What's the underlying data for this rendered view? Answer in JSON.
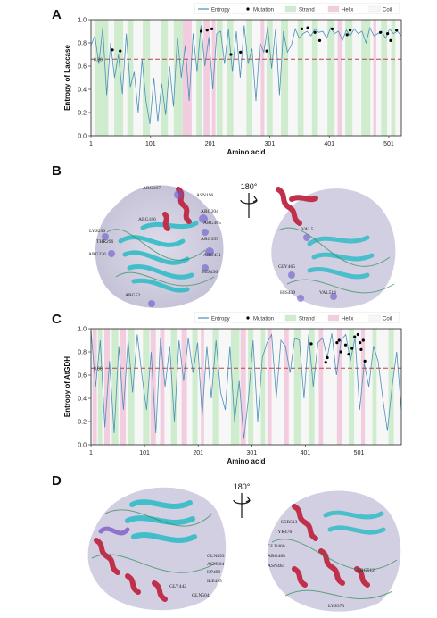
{
  "panels": {
    "a": "A",
    "b": "B",
    "c": "C",
    "d": "D"
  },
  "colors": {
    "entropy": "#4a90b8",
    "mutation": "#000000",
    "strand": "#cfeccf",
    "helix": "#f2cde0",
    "coil": "#f7f7f7",
    "threshold": "#b04848"
  },
  "chart_data": [
    {
      "type": "line",
      "legend": [
        "Entropy",
        "Mutation",
        "Strand",
        "Helix",
        "Coil"
      ],
      "legend_position": "top-right",
      "xlabel": "Amino acid",
      "ylabel": "Entropy of Laccase",
      "xticks": [
        "1",
        "101",
        "201",
        "301",
        "401",
        "501"
      ],
      "yticks": [
        "0.0",
        "0.2",
        "0.4",
        "0.6",
        "0.8",
        "1.0"
      ],
      "threshold_label": "0.66",
      "threshold": 0.66,
      "xlim": [
        1,
        522
      ],
      "ylim": [
        0,
        1.0
      ],
      "strand_regions": [
        [
          8,
          30
        ],
        [
          40,
          55
        ],
        [
          62,
          72
        ],
        [
          88,
          100
        ],
        [
          118,
          130
        ],
        [
          140,
          155
        ],
        [
          178,
          188
        ],
        [
          212,
          222
        ],
        [
          230,
          240
        ],
        [
          262,
          272
        ],
        [
          296,
          306
        ],
        [
          320,
          332
        ],
        [
          348,
          358
        ],
        [
          372,
          382
        ],
        [
          398,
          410
        ],
        [
          428,
          440
        ],
        [
          455,
          470
        ],
        [
          488,
          498
        ],
        [
          505,
          512
        ]
      ],
      "helix_regions": [
        [
          155,
          170
        ],
        [
          190,
          200
        ],
        [
          204,
          210
        ],
        [
          286,
          292
        ],
        [
          415,
          422
        ],
        [
          475,
          480
        ]
      ],
      "mutation_points": [
        [
          37,
          0.74
        ],
        [
          50,
          0.73
        ],
        [
          186,
          0.9
        ],
        [
          196,
          0.91
        ],
        [
          204,
          0.92
        ],
        [
          236,
          0.7
        ],
        [
          252,
          0.72
        ],
        [
          296,
          0.73
        ],
        [
          355,
          0.92
        ],
        [
          365,
          0.93
        ],
        [
          377,
          0.89
        ],
        [
          385,
          0.82
        ],
        [
          406,
          0.92
        ],
        [
          431,
          0.87
        ],
        [
          436,
          0.91
        ],
        [
          487,
          0.89
        ],
        [
          499,
          0.88
        ],
        [
          504,
          0.82
        ],
        [
          514,
          0.91
        ]
      ],
      "entropy_profile": [
        0.78,
        0.86,
        0.62,
        0.93,
        0.35,
        0.8,
        0.5,
        0.7,
        0.36,
        0.88,
        0.42,
        0.55,
        0.2,
        0.66,
        0.3,
        0.1,
        0.5,
        0.12,
        0.45,
        0.18,
        0.6,
        0.25,
        0.85,
        0.5,
        0.78,
        0.3,
        0.88,
        0.55,
        0.95,
        0.6,
        0.85,
        0.4,
        0.88,
        0.9,
        0.62,
        0.92,
        0.55,
        0.9,
        0.5,
        0.95,
        0.62,
        0.75,
        0.3,
        0.8,
        0.72,
        0.94,
        0.58,
        0.92,
        0.35,
        0.9,
        0.72,
        0.78,
        0.92,
        0.84,
        0.88,
        0.9,
        0.86,
        0.92,
        0.89,
        0.9,
        0.84,
        0.93,
        0.88,
        0.9,
        0.82,
        0.91,
        0.86,
        0.92,
        0.88,
        0.9,
        0.8,
        0.93,
        0.86,
        0.88,
        0.9,
        0.84,
        0.92,
        0.88,
        0.9,
        0.86
      ]
    },
    {
      "type": "line",
      "legend": [
        "Entropy",
        "Mutation",
        "Strand",
        "Helix",
        "Coil"
      ],
      "legend_position": "top-right",
      "xlabel": "Amino acid",
      "ylabel": "Entropy of AtGDH",
      "xticks": [
        "1",
        "101",
        "201",
        "301",
        "401",
        "501"
      ],
      "yticks": [
        "0.0",
        "0.2",
        "0.4",
        "0.6",
        "0.8",
        "1.0"
      ],
      "threshold_label": "0.66",
      "threshold": 0.66,
      "xlim": [
        1,
        580
      ],
      "ylim": [
        0,
        1.0
      ],
      "strand_regions": [
        [
          14,
          22
        ],
        [
          40,
          52
        ],
        [
          70,
          82
        ],
        [
          98,
          110
        ],
        [
          150,
          162
        ],
        [
          190,
          200
        ],
        [
          228,
          240
        ],
        [
          262,
          278
        ],
        [
          294,
          304
        ],
        [
          318,
          326
        ],
        [
          380,
          392
        ],
        [
          408,
          418
        ],
        [
          482,
          492
        ],
        [
          526,
          534
        ],
        [
          556,
          566
        ]
      ],
      "helix_regions": [
        [
          4,
          12
        ],
        [
          26,
          36
        ],
        [
          56,
          66
        ],
        [
          112,
          122
        ],
        [
          130,
          138
        ],
        [
          170,
          180
        ],
        [
          206,
          212
        ],
        [
          280,
          290
        ],
        [
          330,
          338
        ],
        [
          362,
          370
        ],
        [
          426,
          434
        ],
        [
          460,
          470
        ],
        [
          505,
          512
        ]
      ],
      "mutation_points": [
        [
          412,
          0.87
        ],
        [
          439,
          0.71
        ],
        [
          442,
          0.75
        ],
        [
          460,
          0.88
        ],
        [
          464,
          0.9
        ],
        [
          467,
          0.8
        ],
        [
          476,
          0.86
        ],
        [
          482,
          0.78
        ],
        [
          488,
          0.83
        ],
        [
          493,
          0.93
        ],
        [
          499,
          0.95
        ],
        [
          503,
          0.88
        ],
        [
          505,
          0.82
        ],
        [
          509,
          0.9
        ],
        [
          512,
          0.72
        ]
      ],
      "entropy_profile": [
        0.98,
        0.5,
        0.9,
        0.15,
        0.72,
        0.1,
        0.85,
        0.3,
        0.9,
        0.45,
        0.95,
        0.6,
        0.3,
        0.8,
        0.1,
        0.92,
        0.5,
        0.85,
        0.2,
        0.9,
        0.55,
        0.92,
        0.62,
        0.88,
        0.25,
        0.85,
        0.4,
        0.9,
        0.45,
        0.3,
        0.85,
        0.2,
        0.55,
        0.05,
        0.4,
        0.9,
        0.2,
        0.75,
        0.88,
        0.95,
        0.4,
        0.9,
        0.85,
        0.62,
        0.92,
        0.9,
        0.4,
        0.95,
        0.5,
        0.88,
        0.92,
        0.75,
        0.96,
        0.6,
        0.9,
        0.95,
        0.72,
        0.92,
        0.3,
        0.7,
        0.5,
        0.85,
        0.72,
        0.4,
        0.12,
        0.5,
        0.8,
        0.3
      ]
    }
  ],
  "structures": {
    "rotation_label": "180°",
    "b_left_labels": [
      "ARG187",
      "ASN196",
      "ARG204",
      "ARG186",
      "ARG365",
      "LYS296",
      "THR296",
      "ARG355",
      "ARG236",
      "ARG431",
      "HIS436",
      "ARG52"
    ],
    "b_right_labels": [
      "VAL5",
      "GLY465",
      "HIS439",
      "VAL514"
    ],
    "d_left_labels": [
      "GLN493",
      "ASN504",
      "HP499",
      "GLY442",
      "ILE495",
      "GLN504"
    ],
    "d_right_labels": [
      "SER513",
      "TYR476",
      "GLU460",
      "ARG488",
      "ASN464",
      "ARG512",
      "LYS373"
    ]
  }
}
